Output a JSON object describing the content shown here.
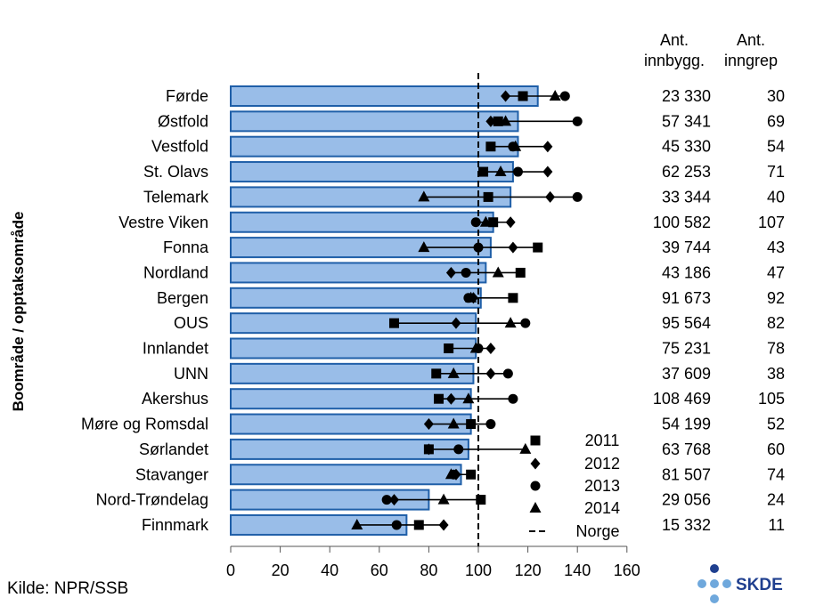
{
  "chart_data": {
    "type": "bar",
    "ylabel": "Boområde / opptaksområde",
    "xlim": [
      0,
      160
    ],
    "xticks": [
      0,
      20,
      40,
      60,
      80,
      100,
      120,
      140,
      160
    ],
    "reference_line": {
      "name": "Norge",
      "value": 100
    },
    "categories": [
      "Førde",
      "Østfold",
      "Vestfold",
      "St. Olavs",
      "Telemark",
      "Vestre Viken",
      "Fonna",
      "Nordland",
      "Bergen",
      "OUS",
      "Innlandet",
      "UNN",
      "Akershus",
      "Møre og Romsdal",
      "Sørlandet",
      "Stavanger",
      "Nord-Trøndelag",
      "Finnmark"
    ],
    "values": [
      124,
      116,
      116,
      114,
      113,
      106,
      105,
      103,
      101,
      99,
      99,
      98,
      97,
      97,
      96,
      93,
      80,
      71
    ],
    "series": [
      {
        "name": "2011",
        "marker": "square",
        "values": [
          118,
          108,
          105,
          102,
          104,
          106,
          124,
          117,
          114,
          66,
          88,
          83,
          84,
          97,
          80,
          97,
          101,
          76
        ]
      },
      {
        "name": "2012",
        "marker": "diamond",
        "values": [
          111,
          105,
          128,
          128,
          129,
          113,
          114,
          89,
          98,
          91,
          105,
          105,
          89,
          80,
          80,
          91,
          66,
          86
        ]
      },
      {
        "name": "2013",
        "marker": "circle",
        "values": [
          135,
          140,
          114,
          116,
          140,
          99,
          100,
          95,
          96,
          119,
          100,
          112,
          114,
          105,
          92,
          90,
          63,
          67
        ]
      },
      {
        "name": "2014",
        "marker": "triangle",
        "values": [
          131,
          111,
          115,
          109,
          78,
          103,
          78,
          108,
          97,
          113,
          99,
          90,
          96,
          90,
          119,
          89,
          86,
          51
        ]
      }
    ],
    "table_headers": [
      [
        "Ant.",
        "innbygg."
      ],
      [
        "Ant.",
        "inngrep"
      ]
    ],
    "innbyggere": [
      "23 330",
      "57 341",
      "45 330",
      "62 253",
      "33 344",
      "100 582",
      "39 744",
      "43 186",
      "91 673",
      "95 564",
      "75 231",
      "37 609",
      "108 469",
      "54 199",
      "63 768",
      "81 507",
      "29 056",
      "15 332"
    ],
    "inngrep": [
      "30",
      "69",
      "54",
      "71",
      "40",
      "107",
      "43",
      "47",
      "92",
      "82",
      "78",
      "38",
      "105",
      "52",
      "60",
      "74",
      "24",
      "11"
    ],
    "colors": {
      "bar_fill": "#99bde8",
      "bar_stroke": "#1f5fa8",
      "marker": "#000000"
    }
  },
  "source": "Kilde: NPR/SSB",
  "logo": {
    "text": "SKDE",
    "colors": [
      "#1f3f8f",
      "#6fa8dc"
    ]
  }
}
